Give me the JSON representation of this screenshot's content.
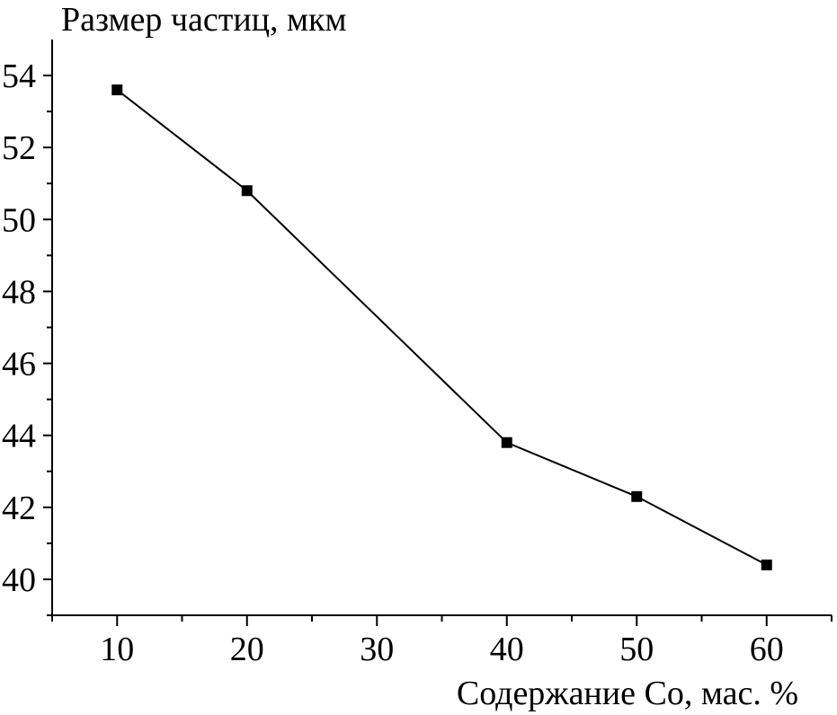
{
  "chart_data": {
    "type": "line",
    "title": "",
    "xlabel": "Содержание Co, мас. %",
    "ylabel": "Размер частиц, мкм",
    "x": [
      10,
      20,
      40,
      50,
      60
    ],
    "series": [
      {
        "values": [
          53.6,
          50.8,
          43.8,
          42.3,
          40.4
        ]
      }
    ],
    "xlim": [
      5,
      65
    ],
    "ylim": [
      39,
      55
    ],
    "x_ticks": [
      "10",
      "20",
      "30",
      "40",
      "50",
      "60"
    ],
    "y_ticks": [
      "40",
      "42",
      "44",
      "46",
      "48",
      "50",
      "52",
      "54"
    ],
    "marker": "square",
    "grid": false,
    "legend": "none",
    "line_color": "#000000"
  }
}
